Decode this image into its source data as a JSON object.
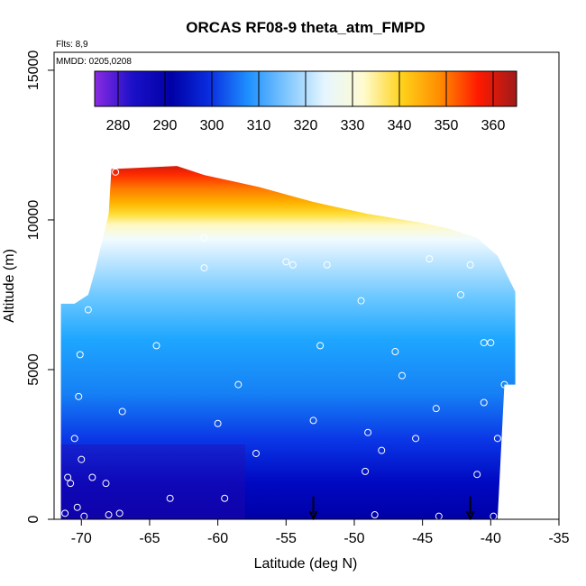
{
  "chart_data": {
    "type": "heatmap",
    "title": "ORCAS RF08-9 theta_atm_FMPD",
    "xlabel": "Latitude (deg N)",
    "ylabel": "Altitude (m)",
    "xlim": [
      -72,
      -35
    ],
    "ylim": [
      0,
      15600
    ],
    "x_ticks": [
      -70,
      -65,
      -60,
      -55,
      -50,
      -45,
      -40,
      -35
    ],
    "x_tick_labels": [
      "-70",
      "-65",
      "-60",
      "-55",
      "-50",
      "-45",
      "-40",
      "-35"
    ],
    "y_ticks": [
      0,
      5000,
      10000,
      15000
    ],
    "y_tick_labels": [
      "0",
      "5000",
      "10000",
      "15000"
    ],
    "grid": false,
    "legend_placement": "top",
    "notes": [
      "Flts: 8,9",
      "MMDD: 0205,0208"
    ],
    "colorbar": {
      "ticks": [
        280,
        290,
        300,
        310,
        320,
        330,
        340,
        350,
        360
      ],
      "tick_labels": [
        "280",
        "290",
        "300",
        "310",
        "320",
        "330",
        "340",
        "350",
        "360"
      ],
      "range": [
        275,
        365
      ],
      "colors": [
        "#8a2be2",
        "#1a10c8",
        "#0000a6",
        "#0a2ee0",
        "#1e90ff",
        "#7fc6ff",
        "#e6f6ff",
        "#fffbd0",
        "#ffd21a",
        "#ff8c00",
        "#ff1a00",
        "#a01a1a"
      ]
    },
    "field": {
      "description_values": "potential temperature in K; surface about 283 K north to 290 K south, 320 K near 9 km, 360 K near 11.5 km",
      "top_profile": [
        {
          "x": -71.5,
          "alt": 7200
        },
        {
          "x": -71.2,
          "alt": 7200
        },
        {
          "x": -70.5,
          "alt": 7200
        },
        {
          "x": -69.5,
          "alt": 7500
        },
        {
          "x": -69.0,
          "alt": 8300
        },
        {
          "x": -68.0,
          "alt": 10200
        },
        {
          "x": -67.8,
          "alt": 11700
        },
        {
          "x": -63.0,
          "alt": 11800
        },
        {
          "x": -61.0,
          "alt": 11500
        },
        {
          "x": -57.0,
          "alt": 11100
        },
        {
          "x": -53.0,
          "alt": 10600
        },
        {
          "x": -49.0,
          "alt": 10200
        },
        {
          "x": -45.0,
          "alt": 9900
        },
        {
          "x": -43.0,
          "alt": 9700
        },
        {
          "x": -41.0,
          "alt": 9400
        },
        {
          "x": -39.5,
          "alt": 8800
        },
        {
          "x": -38.2,
          "alt": 7600
        }
      ],
      "bottom_profile": [
        {
          "x": -71.5,
          "alt": 0
        },
        {
          "x": -40.0,
          "alt": 0
        }
      ]
    },
    "markers": [
      {
        "x": -71.2,
        "y": 200
      },
      {
        "x": -70.3,
        "y": 400
      },
      {
        "x": -69.8,
        "y": 100
      },
      {
        "x": -70.8,
        "y": 1200
      },
      {
        "x": -71.0,
        "y": 1400
      },
      {
        "x": -69.2,
        "y": 1400
      },
      {
        "x": -68.2,
        "y": 1200
      },
      {
        "x": -67.2,
        "y": 200
      },
      {
        "x": -68.0,
        "y": 150
      },
      {
        "x": -70.0,
        "y": 2000
      },
      {
        "x": -70.5,
        "y": 2700
      },
      {
        "x": -70.2,
        "y": 4100
      },
      {
        "x": -70.1,
        "y": 5500
      },
      {
        "x": -69.5,
        "y": 7000
      },
      {
        "x": -67.0,
        "y": 3600
      },
      {
        "x": -64.5,
        "y": 5800
      },
      {
        "x": -60.0,
        "y": 3200
      },
      {
        "x": -58.5,
        "y": 4500
      },
      {
        "x": -57.2,
        "y": 2200
      },
      {
        "x": -59.5,
        "y": 700
      },
      {
        "x": -63.5,
        "y": 700
      },
      {
        "x": -61.0,
        "y": 8400
      },
      {
        "x": -61.0,
        "y": 9400
      },
      {
        "x": -67.5,
        "y": 11600
      },
      {
        "x": -55.0,
        "y": 8600
      },
      {
        "x": -54.5,
        "y": 8500
      },
      {
        "x": -52.0,
        "y": 8500
      },
      {
        "x": -52.5,
        "y": 5800
      },
      {
        "x": -53.0,
        "y": 3300
      },
      {
        "x": -49.0,
        "y": 2900
      },
      {
        "x": -49.2,
        "y": 1600
      },
      {
        "x": -48.5,
        "y": 150
      },
      {
        "x": -48.0,
        "y": 2300
      },
      {
        "x": -49.5,
        "y": 7300
      },
      {
        "x": -47.0,
        "y": 5600
      },
      {
        "x": -46.5,
        "y": 4800
      },
      {
        "x": -45.5,
        "y": 2700
      },
      {
        "x": -44.0,
        "y": 3700
      },
      {
        "x": -43.8,
        "y": 100
      },
      {
        "x": -42.2,
        "y": 7500
      },
      {
        "x": -41.5,
        "y": 8500
      },
      {
        "x": -40.5,
        "y": 5900
      },
      {
        "x": -40.0,
        "y": 5900
      },
      {
        "x": -40.5,
        "y": 3900
      },
      {
        "x": -41.0,
        "y": 1500
      },
      {
        "x": -39.5,
        "y": 2700
      },
      {
        "x": -39.8,
        "y": 100
      },
      {
        "x": -39.0,
        "y": 4500
      },
      {
        "x": -44.5,
        "y": 8700
      },
      {
        "x": -37.8,
        "y": 7600
      }
    ],
    "arrows": [
      {
        "x": -53.0,
        "y_top": 700,
        "y_bottom": 0
      },
      {
        "x": -41.5,
        "y_top": 700,
        "y_bottom": 0
      }
    ]
  }
}
